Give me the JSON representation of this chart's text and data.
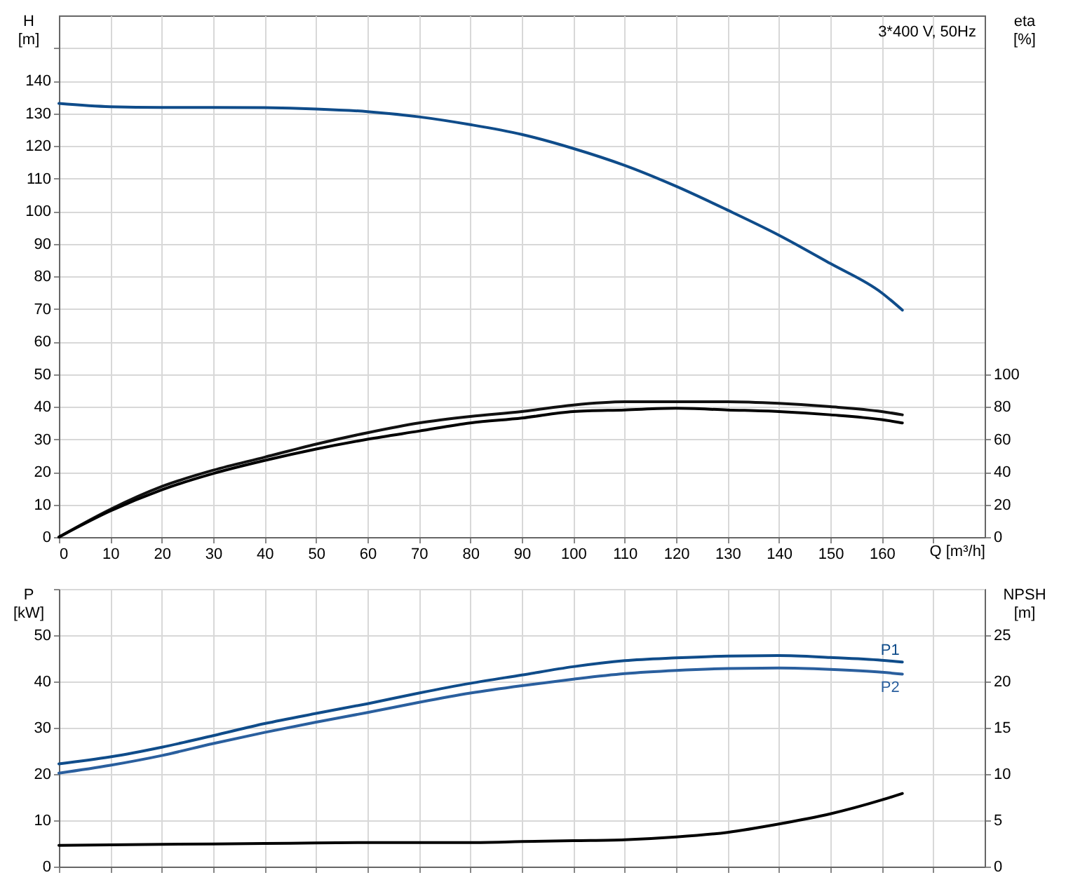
{
  "chart_data": [
    {
      "type": "line",
      "xlabel": "Q [m³/h]",
      "ylabel": "H [m]",
      "y2label": "eta [%]",
      "x": [
        0,
        10,
        20,
        30,
        40,
        50,
        60,
        70,
        80,
        90,
        100,
        110,
        120,
        130,
        140,
        150,
        160,
        164
      ],
      "series": [
        {
          "color": "#0f4c8a",
          "values": [
            133,
            132,
            131.8,
            131.8,
            131.7,
            131.3,
            130.5,
            128.9,
            126.5,
            123.5,
            119.2,
            114,
            107.6,
            100.3,
            92.6,
            83.9,
            74.9,
            69.6
          ]
        },
        {
          "color": "#111111",
          "axis": "y2",
          "values": [
            0,
            17,
            31,
            41,
            49,
            57,
            64,
            70,
            74,
            77,
            81,
            83,
            83,
            83,
            82,
            80,
            77,
            75
          ]
        },
        {
          "color": "#000000",
          "axis": "y2",
          "values": [
            0,
            16,
            29,
            39,
            47,
            54,
            60,
            65,
            70,
            73,
            77,
            78,
            79,
            78,
            77,
            75,
            72,
            70
          ]
        }
      ],
      "xlim": [
        0,
        180
      ],
      "xticks": [
        0,
        10,
        20,
        30,
        40,
        50,
        60,
        70,
        80,
        90,
        100,
        110,
        120,
        130,
        140,
        150,
        160,
        {
          "value": 170,
          "label": null
        }
      ],
      "ylim": [
        0,
        160
      ],
      "yticks": [
        0,
        10,
        20,
        30,
        40,
        50,
        60,
        70,
        80,
        90,
        100,
        110,
        120,
        130,
        140,
        {
          "value": 150,
          "label": null
        }
      ],
      "y2lim": [
        0,
        320
      ],
      "y2ticks": [
        0,
        20,
        40,
        60,
        80,
        100
      ],
      "grid": true,
      "annotations": [
        "3*400 V, 50Hz"
      ]
    },
    {
      "type": "line",
      "ylabel": "P [kW]",
      "y2label": "NPSH [m]",
      "x": [
        0,
        10,
        20,
        30,
        40,
        50,
        60,
        70,
        80,
        90,
        100,
        110,
        120,
        130,
        140,
        150,
        160,
        164
      ],
      "series": [
        {
          "name": "P1",
          "color": "#0f4c8a",
          "values": [
            22.2,
            23.7,
            25.8,
            28.3,
            30.9,
            33.1,
            35.2,
            37.5,
            39.6,
            41.4,
            43.2,
            44.5,
            45.1,
            45.5,
            45.6,
            45.2,
            44.6,
            44.2
          ]
        },
        {
          "name": "P2",
          "color": "#2a5f9e",
          "values": [
            20.2,
            21.9,
            24,
            26.6,
            29,
            31.2,
            33.3,
            35.5,
            37.5,
            39.1,
            40.5,
            41.7,
            42.4,
            42.8,
            42.9,
            42.6,
            42,
            41.6
          ]
        },
        {
          "color": "#000000",
          "axis": "y2",
          "values": [
            2.3,
            2.35,
            2.4,
            2.45,
            2.5,
            2.55,
            2.6,
            2.6,
            2.6,
            2.7,
            2.8,
            2.9,
            3.2,
            3.7,
            4.6,
            5.7,
            7.2,
            7.9
          ]
        }
      ],
      "xlim": [
        0,
        180
      ],
      "xticks": [
        0,
        10,
        20,
        30,
        40,
        50,
        60,
        70,
        80,
        90,
        100,
        110,
        120,
        130,
        140,
        150,
        160,
        {
          "value": 170,
          "label": null
        }
      ],
      "ylim": [
        0,
        60
      ],
      "yticks": [
        0,
        10,
        20,
        30,
        40,
        50,
        {
          "value": 60,
          "label": null
        }
      ],
      "y2lim": [
        0,
        30
      ],
      "y2ticks": [
        0,
        5,
        10,
        15,
        20,
        25
      ],
      "grid": true,
      "tick_labels": "y"
    }
  ]
}
